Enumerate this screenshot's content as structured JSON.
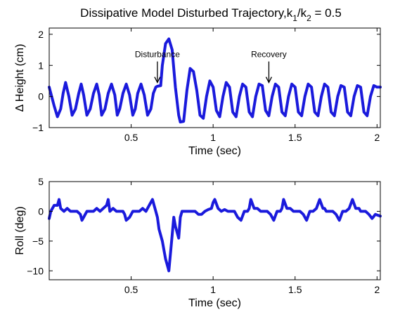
{
  "figure": {
    "title_main": "Dissipative Model Disturbed Trajectory,k",
    "title_sub1": "1",
    "title_mid": "/k",
    "title_sub2": "2",
    "title_end": " = 0.5"
  },
  "colors": {
    "line": "#1a1adc",
    "axis": "#000000",
    "background": "#ffffff"
  },
  "chart_data": [
    {
      "type": "line",
      "title": "Dissipative Model Disturbed Trajectory,k1/k2 = 0.5",
      "xlabel": "Time (sec)",
      "ylabel": "Δ Height (cm)",
      "xlim": [
        0.0,
        2.02
      ],
      "ylim": [
        -1,
        2.2
      ],
      "xticks": [
        0.5,
        1,
        1.5,
        2
      ],
      "xtick_labels": [
        "0.5",
        "1",
        "1.5",
        "2"
      ],
      "yticks": [
        -1,
        0,
        1,
        2
      ],
      "ytick_labels": [
        "−1",
        "0",
        "1",
        "2"
      ],
      "grid": false,
      "annotations": [
        {
          "text": "Disturbance",
          "x": 0.66,
          "y": 0.45
        },
        {
          "text": "Recovery",
          "x": 1.34,
          "y": 0.45
        }
      ],
      "series": [
        {
          "x": [
            0.0,
            0.03,
            0.05,
            0.07,
            0.085,
            0.1,
            0.12,
            0.14,
            0.16,
            0.18,
            0.195,
            0.21,
            0.23,
            0.25,
            0.27,
            0.29,
            0.305,
            0.32,
            0.34,
            0.36,
            0.38,
            0.4,
            0.415,
            0.43,
            0.45,
            0.47,
            0.49,
            0.51,
            0.525,
            0.54,
            0.56,
            0.58,
            0.6,
            0.62,
            0.635,
            0.65,
            0.66,
            0.68,
            0.69,
            0.71,
            0.73,
            0.75,
            0.77,
            0.79,
            0.8,
            0.82,
            0.84,
            0.86,
            0.88,
            0.9,
            0.92,
            0.94,
            0.96,
            0.98,
            1.0,
            1.02,
            1.04,
            1.06,
            1.08,
            1.1,
            1.12,
            1.14,
            1.16,
            1.18,
            1.2,
            1.22,
            1.24,
            1.26,
            1.28,
            1.3,
            1.32,
            1.34,
            1.36,
            1.38,
            1.4,
            1.42,
            1.44,
            1.46,
            1.48,
            1.5,
            1.52,
            1.54,
            1.56,
            1.58,
            1.6,
            1.62,
            1.64,
            1.66,
            1.68,
            1.7,
            1.72,
            1.74,
            1.76,
            1.78,
            1.8,
            1.82,
            1.84,
            1.86,
            1.88,
            1.9,
            1.92,
            1.94,
            1.96,
            1.98,
            2.0,
            2.02
          ],
          "values": [
            0.3,
            -0.3,
            -0.65,
            -0.4,
            0.1,
            0.45,
            0.0,
            -0.6,
            -0.4,
            0.1,
            0.4,
            0.05,
            -0.6,
            -0.4,
            0.1,
            0.4,
            0.05,
            -0.6,
            -0.4,
            0.1,
            0.4,
            0.05,
            -0.6,
            -0.4,
            0.1,
            0.4,
            0.05,
            -0.6,
            -0.4,
            0.1,
            0.4,
            0.05,
            -0.6,
            -0.4,
            0.1,
            0.3,
            0.33,
            0.35,
            1.0,
            1.7,
            1.85,
            1.5,
            0.3,
            -0.6,
            -0.82,
            -0.8,
            0.2,
            0.9,
            0.8,
            0.2,
            -0.6,
            -0.7,
            0.0,
            0.5,
            0.3,
            -0.45,
            -0.65,
            0.0,
            0.45,
            0.3,
            -0.5,
            -0.65,
            0.0,
            0.4,
            0.3,
            -0.5,
            -0.65,
            0.0,
            0.4,
            0.35,
            -0.45,
            -0.62,
            0.0,
            0.4,
            0.3,
            -0.5,
            -0.62,
            0.0,
            0.4,
            0.3,
            -0.5,
            -0.62,
            0.0,
            0.4,
            0.3,
            -0.5,
            -0.62,
            0.0,
            0.4,
            0.3,
            -0.5,
            -0.62,
            0.0,
            0.35,
            0.3,
            -0.5,
            -0.62,
            0.0,
            0.35,
            0.3,
            -0.5,
            -0.62,
            0.0,
            0.35,
            0.3,
            0.3
          ]
        }
      ]
    },
    {
      "type": "line",
      "xlabel": "Time (sec)",
      "ylabel": "Roll (deg)",
      "xlim": [
        0.0,
        2.02
      ],
      "ylim": [
        -11.5,
        5
      ],
      "xticks": [
        0.5,
        1,
        1.5,
        2
      ],
      "xtick_labels": [
        "0.5",
        "1",
        "1.5",
        "2"
      ],
      "yticks": [
        -10,
        -5,
        0,
        5
      ],
      "ytick_labels": [
        "−10",
        "−5",
        "0",
        "5"
      ],
      "grid": false,
      "series": [
        {
          "x": [
            0.0,
            0.01,
            0.03,
            0.05,
            0.06,
            0.07,
            0.09,
            0.11,
            0.13,
            0.15,
            0.17,
            0.19,
            0.2,
            0.21,
            0.23,
            0.25,
            0.27,
            0.29,
            0.31,
            0.33,
            0.35,
            0.36,
            0.37,
            0.39,
            0.41,
            0.43,
            0.45,
            0.46,
            0.47,
            0.49,
            0.51,
            0.53,
            0.55,
            0.57,
            0.59,
            0.6,
            0.61,
            0.63,
            0.65,
            0.66,
            0.67,
            0.69,
            0.71,
            0.72,
            0.73,
            0.75,
            0.76,
            0.77,
            0.79,
            0.8,
            0.81,
            0.83,
            0.85,
            0.87,
            0.89,
            0.91,
            0.93,
            0.95,
            0.97,
            0.99,
            1.0,
            1.01,
            1.03,
            1.05,
            1.07,
            1.09,
            1.11,
            1.13,
            1.15,
            1.17,
            1.19,
            1.21,
            1.22,
            1.23,
            1.25,
            1.27,
            1.29,
            1.31,
            1.33,
            1.35,
            1.37,
            1.39,
            1.41,
            1.42,
            1.43,
            1.45,
            1.47,
            1.49,
            1.51,
            1.53,
            1.55,
            1.57,
            1.59,
            1.61,
            1.63,
            1.65,
            1.67,
            1.68,
            1.69,
            1.71,
            1.73,
            1.75,
            1.77,
            1.79,
            1.81,
            1.83,
            1.85,
            1.87,
            1.89,
            1.9,
            1.91,
            1.93,
            1.95,
            1.97,
            1.99,
            2.02
          ],
          "values": [
            -1.2,
            0.0,
            1.0,
            1.0,
            2.0,
            0.5,
            0.0,
            0.5,
            0.0,
            0.0,
            0.0,
            -0.5,
            -1.5,
            -1.0,
            0.0,
            0.0,
            0.0,
            0.5,
            0.0,
            0.5,
            1.0,
            2.0,
            0.0,
            0.5,
            0.0,
            0.0,
            0.0,
            -0.5,
            -1.5,
            -1.0,
            0.0,
            0.0,
            0.0,
            0.5,
            0.0,
            0.5,
            1.0,
            2.0,
            0.0,
            -1.0,
            -3.0,
            -5.0,
            -8.0,
            -9.0,
            -10.0,
            -4.0,
            -1.0,
            -2.5,
            -4.5,
            -1.0,
            0.0,
            0.0,
            0.0,
            0.0,
            0.0,
            -0.5,
            -0.5,
            0.0,
            0.3,
            0.5,
            1.5,
            2.0,
            0.5,
            0.0,
            0.3,
            0.0,
            0.0,
            0.0,
            -1.0,
            -1.5,
            0.0,
            0.0,
            0.5,
            2.0,
            0.5,
            0.5,
            0.0,
            0.0,
            0.0,
            -0.5,
            -1.5,
            0.0,
            0.0,
            0.5,
            2.0,
            0.5,
            0.5,
            0.0,
            0.0,
            0.0,
            -0.5,
            -1.5,
            0.0,
            0.0,
            0.5,
            2.0,
            0.5,
            0.5,
            0.0,
            0.0,
            0.0,
            -0.5,
            -1.5,
            0.0,
            0.0,
            0.5,
            2.0,
            0.5,
            0.5,
            0.0,
            0.0,
            0.0,
            -0.5,
            -1.2,
            -0.5,
            -0.8
          ]
        }
      ]
    }
  ]
}
